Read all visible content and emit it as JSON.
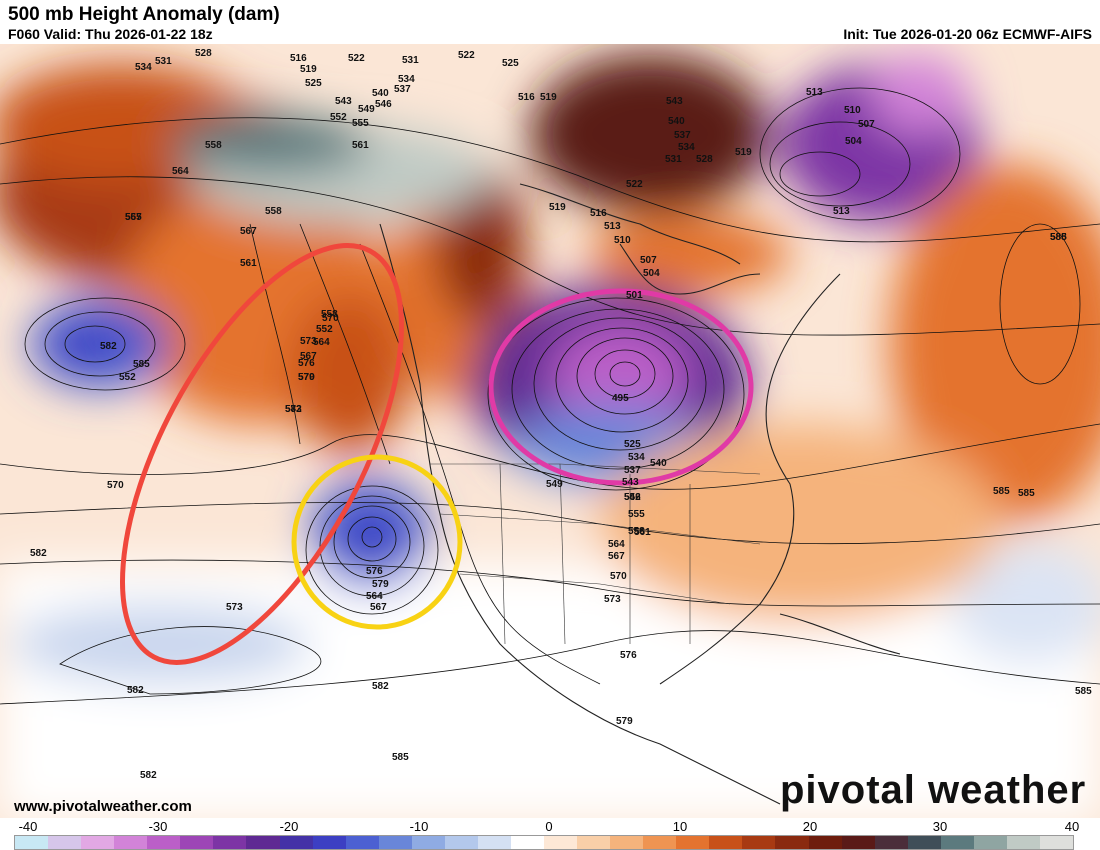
{
  "header": {
    "title": "500 mb Height Anomaly (dam)",
    "valid": "F060 Valid: Thu 2026-01-22 18z",
    "init": "Init: Tue 2026-01-20 06z ECMWF-AIFS"
  },
  "footer": {
    "url": "www.pivotalweather.com",
    "brand": "pivotal weather"
  },
  "colorbar": {
    "ticks": [
      "-40",
      "-30",
      "-20",
      "-10",
      "0",
      "10",
      "20",
      "30",
      "40"
    ],
    "colors": [
      "#c8e8f4",
      "#d6c6ea",
      "#e2a8e4",
      "#d283d8",
      "#bb5fc8",
      "#9d45b6",
      "#7d34a5",
      "#5f2993",
      "#4432a7",
      "#3c3fc3",
      "#4c60d2",
      "#6986d9",
      "#8fabe3",
      "#b3c8ec",
      "#d4e0f3",
      "#ffffff",
      "#fde8d6",
      "#f9cfa8",
      "#f5b37c",
      "#ef9452",
      "#e4732f",
      "#c85119",
      "#a83a12",
      "#8a2a0f",
      "#6e1d0d",
      "#5a1a17",
      "#4b2e3a",
      "#3f4e58",
      "#5c7a7e",
      "#8fa5a2",
      "#c0cac5",
      "#dedfdc"
    ],
    "notes": "Color scale from -40 to +40 dam anomaly"
  },
  "contour_labels": [
    "534",
    "531",
    "528",
    "516",
    "519",
    "525",
    "522",
    "531",
    "534",
    "537",
    "540",
    "543",
    "546",
    "549",
    "552",
    "555",
    "558",
    "561",
    "564",
    "567",
    "570",
    "573",
    "576",
    "579",
    "582",
    "585",
    "588",
    "522",
    "525",
    "516",
    "519",
    "543",
    "540",
    "537",
    "534",
    "531",
    "528",
    "519",
    "513",
    "510",
    "507",
    "504",
    "513",
    "522",
    "516",
    "519",
    "513",
    "510",
    "507",
    "504",
    "501",
    "495",
    "525",
    "534",
    "537",
    "540",
    "543",
    "546",
    "549",
    "552",
    "555",
    "558",
    "561",
    "564",
    "567",
    "570",
    "573",
    "576",
    "579",
    "582",
    "585",
    "552",
    "555",
    "558",
    "567",
    "561",
    "558",
    "552",
    "564",
    "567",
    "570",
    "573",
    "576",
    "579",
    "564",
    "567",
    "570",
    "573",
    "582",
    "582",
    "582",
    "582",
    "585",
    "585",
    "585",
    "585",
    "585",
    "588"
  ],
  "annotations": [
    {
      "name": "red-ellipse",
      "color": "#f0473c"
    },
    {
      "name": "yellow-circle",
      "color": "#f8d214"
    },
    {
      "name": "magenta-ellipse",
      "color": "#e03aa6"
    }
  ]
}
